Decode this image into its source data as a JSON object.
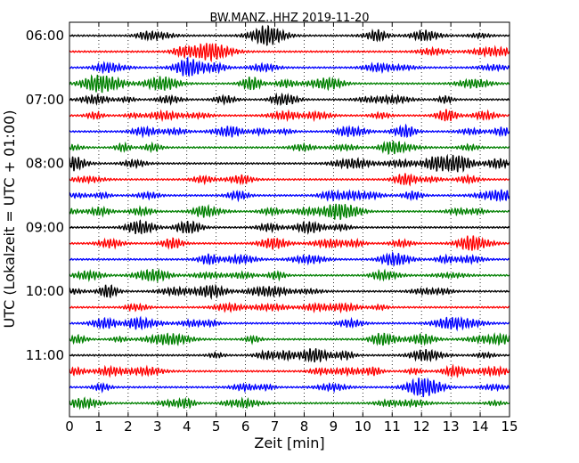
{
  "chart_data": {
    "type": "line",
    "title": "BW.MANZ..HHZ 2019-11-20",
    "xlabel": "Zeit  [min]",
    "ylabel": "UTC (Lokalzeit = UTC + 01:00)",
    "xlim": [
      0,
      15
    ],
    "x_ticks": [
      "0",
      "1",
      "2",
      "3",
      "4",
      "5",
      "6",
      "7",
      "8",
      "9",
      "10",
      "11",
      "12",
      "13",
      "14",
      "15"
    ],
    "y_tick_labels": [
      "06:00",
      "07:00",
      "08:00",
      "09:00",
      "10:00",
      "11:00"
    ],
    "grid": "vertical dotted at each minute",
    "trace_colors": [
      "#000000",
      "#ff0000",
      "#0000ff",
      "#008000"
    ],
    "traces": [
      {
        "start": "06:00",
        "color": "#000000"
      },
      {
        "start": "06:15",
        "color": "#ff0000"
      },
      {
        "start": "06:30",
        "color": "#0000ff"
      },
      {
        "start": "06:45",
        "color": "#008000"
      },
      {
        "start": "07:00",
        "color": "#000000"
      },
      {
        "start": "07:15",
        "color": "#ff0000"
      },
      {
        "start": "07:30",
        "color": "#0000ff"
      },
      {
        "start": "07:45",
        "color": "#008000"
      },
      {
        "start": "08:00",
        "color": "#000000"
      },
      {
        "start": "08:15",
        "color": "#ff0000"
      },
      {
        "start": "08:30",
        "color": "#0000ff"
      },
      {
        "start": "08:45",
        "color": "#008000"
      },
      {
        "start": "09:00",
        "color": "#000000"
      },
      {
        "start": "09:15",
        "color": "#ff0000"
      },
      {
        "start": "09:30",
        "color": "#0000ff"
      },
      {
        "start": "09:45",
        "color": "#008000"
      },
      {
        "start": "10:00",
        "color": "#000000"
      },
      {
        "start": "10:15",
        "color": "#ff0000"
      },
      {
        "start": "10:30",
        "color": "#0000ff"
      },
      {
        "start": "10:45",
        "color": "#008000"
      },
      {
        "start": "11:00",
        "color": "#000000"
      },
      {
        "start": "11:15",
        "color": "#ff0000"
      },
      {
        "start": "11:30",
        "color": "#0000ff"
      },
      {
        "start": "11:45",
        "color": "#008000"
      }
    ]
  }
}
